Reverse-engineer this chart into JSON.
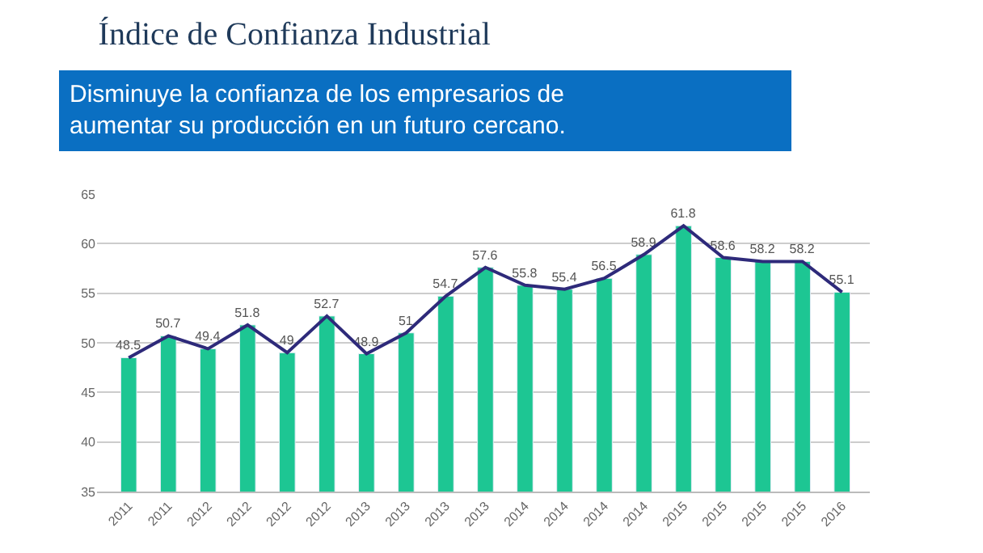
{
  "chart_data": {
    "type": "bar",
    "title": "Índice de Confianza Industrial",
    "subtitle": "Disminuye la confianza de los empresarios de\naumentar su producción en un futuro cercano.",
    "categories": [
      "2011",
      "2011",
      "2012",
      "2012",
      "2012",
      "2012",
      "2013",
      "2013",
      "2013",
      "2013",
      "2014",
      "2014",
      "2014",
      "2014",
      "2015",
      "2015",
      "2015",
      "2015",
      "2016"
    ],
    "series": [
      {
        "color": "#1dc693",
        "values": [
          48.5,
          50.7,
          49.4,
          51.8,
          49,
          52.7,
          48.9,
          51,
          54.7,
          57.6,
          55.8,
          55.4,
          56.5,
          58.9,
          61.8,
          58.6,
          58.2,
          58.2,
          55.1
        ],
        "value_labels": [
          "48.5",
          "50.7",
          "49.4",
          "51.8",
          "49",
          "52.7",
          "48.9",
          "51",
          "54.7",
          "57.6",
          "55.8",
          "55.4",
          "56.5",
          "58.9",
          "61.8",
          "58.6",
          "58.2",
          "58.2",
          "55.1"
        ]
      },
      {
        "type": "line",
        "color": "#2e2a7a",
        "values": [
          48.5,
          50.7,
          49.4,
          51.8,
          49,
          52.7,
          48.9,
          51,
          54.7,
          57.6,
          55.8,
          55.4,
          56.5,
          58.9,
          61.8,
          58.6,
          58.2,
          58.2,
          55.1
        ]
      }
    ],
    "ylim": [
      35,
      65
    ],
    "yticks": [
      35,
      40,
      45,
      50,
      55,
      60,
      65
    ],
    "grid": "y",
    "marker": "none"
  }
}
